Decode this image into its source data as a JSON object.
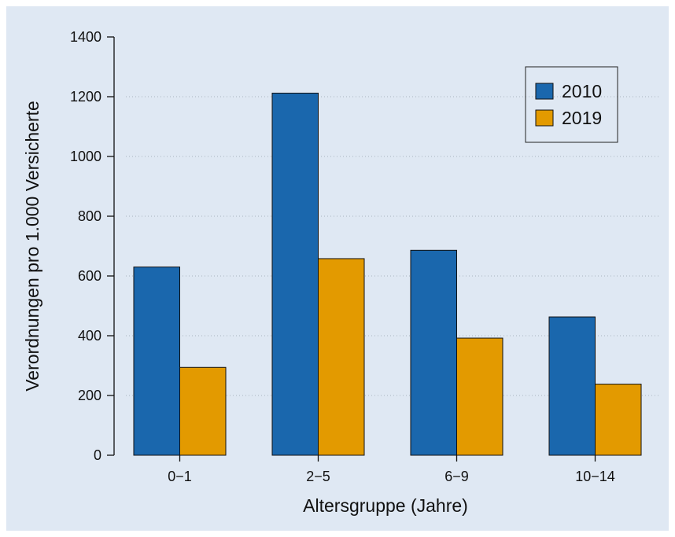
{
  "chart_data": {
    "type": "bar",
    "title": "",
    "xlabel": "Altersgruppe (Jahre)",
    "ylabel": "Verordnungen pro 1.000 Versicherte",
    "categories": [
      "0−1",
      "2−5",
      "6−9",
      "10−14"
    ],
    "series": [
      {
        "name": "2010",
        "color": "#1a67ad",
        "values": [
          630,
          1212,
          686,
          463
        ]
      },
      {
        "name": "2019",
        "color": "#e39a00",
        "values": [
          294,
          658,
          392,
          238
        ]
      }
    ],
    "ylim": [
      0,
      1400
    ],
    "yticks": [
      0,
      200,
      400,
      600,
      800,
      1000,
      1200,
      1400
    ],
    "ytick_labels": [
      "0",
      "200",
      "400",
      "600",
      "800",
      "1000",
      "1200",
      "1400"
    ],
    "grid": "horizontal dotted",
    "legend_position": "top-right",
    "background_color": "#dfe8f3"
  }
}
